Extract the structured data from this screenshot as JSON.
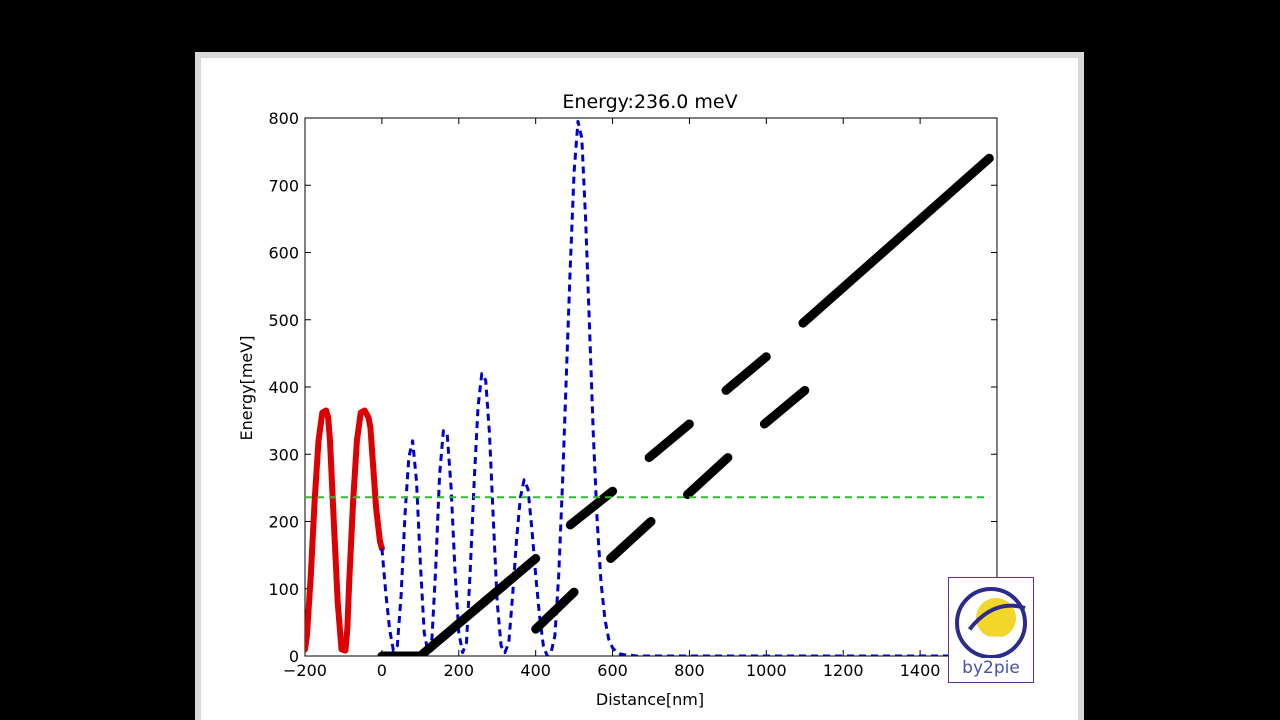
{
  "chart_data": {
    "type": "line",
    "title": "Energy:236.0 meV",
    "xlabel": "Distance[nm]",
    "ylabel": "Energy[meV]",
    "xlim": [
      -200,
      1600
    ],
    "ylim": [
      0,
      800
    ],
    "xticks": [
      -200,
      0,
      200,
      400,
      600,
      800,
      1000,
      1200,
      1400
    ],
    "yticks": [
      0,
      100,
      200,
      300,
      400,
      500,
      600,
      700,
      800
    ],
    "grid": false,
    "series": [
      {
        "kind": "incident-wave",
        "color": "#dd0000",
        "style": "solid",
        "x": [
          -200,
          -195,
          -185,
          -175,
          -165,
          -155,
          -145,
          -140,
          -135,
          -125,
          -115,
          -105,
          -95,
          -90,
          -85,
          -75,
          -65,
          -55,
          -45,
          -35,
          -30,
          -25,
          -15,
          -5,
          0
        ],
        "y": [
          10,
          30,
          120,
          230,
          320,
          362,
          365,
          355,
          320,
          200,
          80,
          10,
          8,
          40,
          110,
          230,
          320,
          362,
          365,
          355,
          340,
          300,
          220,
          170,
          160
        ]
      },
      {
        "kind": "probability-density",
        "color": "#0000cc",
        "style": "dashed",
        "x": [
          0,
          10,
          20,
          30,
          40,
          50,
          60,
          70,
          80,
          90,
          100,
          110,
          120,
          130,
          140,
          150,
          160,
          170,
          180,
          190,
          200,
          210,
          220,
          230,
          240,
          250,
          260,
          270,
          280,
          290,
          300,
          310,
          320,
          330,
          340,
          350,
          360,
          370,
          380,
          390,
          400,
          410,
          420,
          430,
          440,
          450,
          460,
          470,
          480,
          490,
          500,
          510,
          520,
          530,
          540,
          550,
          560,
          570,
          580,
          590,
          600,
          610,
          620,
          630,
          640,
          650,
          660,
          670,
          680,
          690,
          700,
          710,
          720,
          730,
          740,
          750,
          760,
          770,
          780,
          790,
          800,
          850,
          900,
          1000,
          1200,
          1400,
          1580
        ],
        "y": [
          160,
          95,
          40,
          8,
          15,
          90,
          210,
          295,
          320,
          260,
          140,
          35,
          5,
          25,
          130,
          270,
          335,
          330,
          250,
          130,
          35,
          5,
          20,
          130,
          260,
          370,
          420,
          410,
          330,
          200,
          80,
          15,
          5,
          20,
          90,
          170,
          235,
          262,
          248,
          190,
          120,
          60,
          15,
          0,
          5,
          30,
          120,
          260,
          420,
          580,
          720,
          795,
          770,
          650,
          490,
          330,
          200,
          110,
          55,
          25,
          12,
          6,
          3,
          2,
          1,
          1,
          0,
          0,
          0,
          0,
          0,
          0,
          0,
          0,
          0,
          0,
          0,
          0,
          0,
          0,
          0,
          0,
          0,
          0,
          0,
          0,
          0
        ],
        "x_offset_start": 0
      },
      {
        "kind": "potential",
        "color": "#000000",
        "style": "thick",
        "segments": [
          {
            "x": [
              0,
              100
            ],
            "y": [
              0,
              0
            ]
          },
          {
            "x": [
              100,
              400
            ],
            "y": [
              0,
              145
            ]
          },
          {
            "x": [
              400,
              500
            ],
            "y": [
              40,
              95
            ]
          },
          {
            "x": [
              490,
              600
            ],
            "y": [
              195,
              245
            ]
          },
          {
            "x": [
              595,
              700
            ],
            "y": [
              145,
              200
            ]
          },
          {
            "x": [
              695,
              800
            ],
            "y": [
              295,
              345
            ]
          },
          {
            "x": [
              795,
              900
            ],
            "y": [
              240,
              295
            ]
          },
          {
            "x": [
              895,
              1000
            ],
            "y": [
              395,
              445
            ]
          },
          {
            "x": [
              995,
              1100
            ],
            "y": [
              345,
              395
            ]
          },
          {
            "x": [
              1095,
              1580
            ],
            "y": [
              495,
              740
            ]
          }
        ]
      },
      {
        "kind": "energy-level",
        "color": "#33bb33",
        "style": "dashed",
        "x": [
          -200,
          1580
        ],
        "y": [
          236,
          236
        ]
      }
    ]
  },
  "logo": {
    "text": "by2pie",
    "colors": {
      "ring": "#2c2c8a",
      "sun": "#f2d62a",
      "border": "#6b2f8c"
    }
  }
}
